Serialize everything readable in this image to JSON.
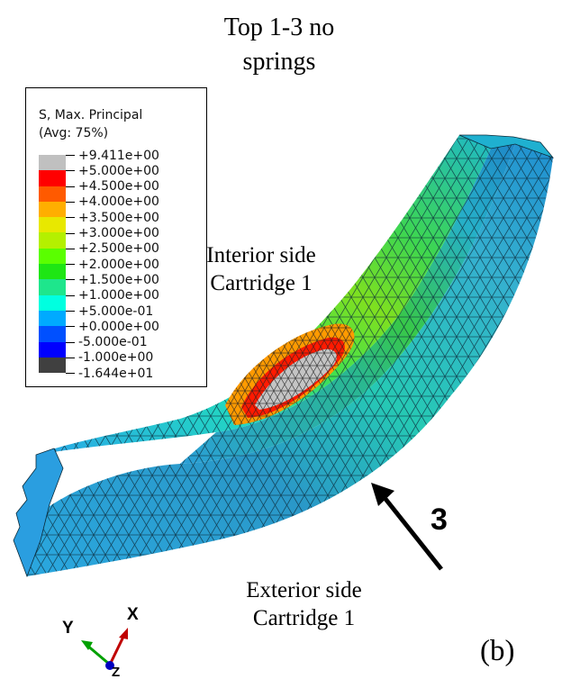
{
  "title": {
    "line1": "Top 1-3 no",
    "line2": "springs"
  },
  "legend": {
    "title_line1": "S, Max. Principal",
    "title_line2": "(Avg: 75%)",
    "labels": [
      "+9.411e+00",
      "+5.000e+00",
      "+4.500e+00",
      "+4.000e+00",
      "+3.500e+00",
      "+3.000e+00",
      "+2.500e+00",
      "+2.000e+00",
      "+1.500e+00",
      "+1.000e+00",
      "+5.000e-01",
      "+0.000e+00",
      "-5.000e-01",
      "-1.000e+00",
      "-1.644e+01"
    ],
    "colors": [
      "#c0c0c0",
      "#ff0000",
      "#ff5a00",
      "#ffae00",
      "#e8e800",
      "#b4f000",
      "#5aff00",
      "#1ee614",
      "#1ee68c",
      "#00ffe0",
      "#00aaff",
      "#0050ff",
      "#0000ff",
      "#404040"
    ]
  },
  "annotations": {
    "interior_line1": "Interior side",
    "interior_line2": "Cartridge 1",
    "exterior_line1": "Exterior side",
    "exterior_line2": "Cartridge 1",
    "arrow_number": "3",
    "subfigure": "(b)"
  },
  "axes": {
    "x": "X",
    "y": "Y",
    "z": "Z"
  }
}
